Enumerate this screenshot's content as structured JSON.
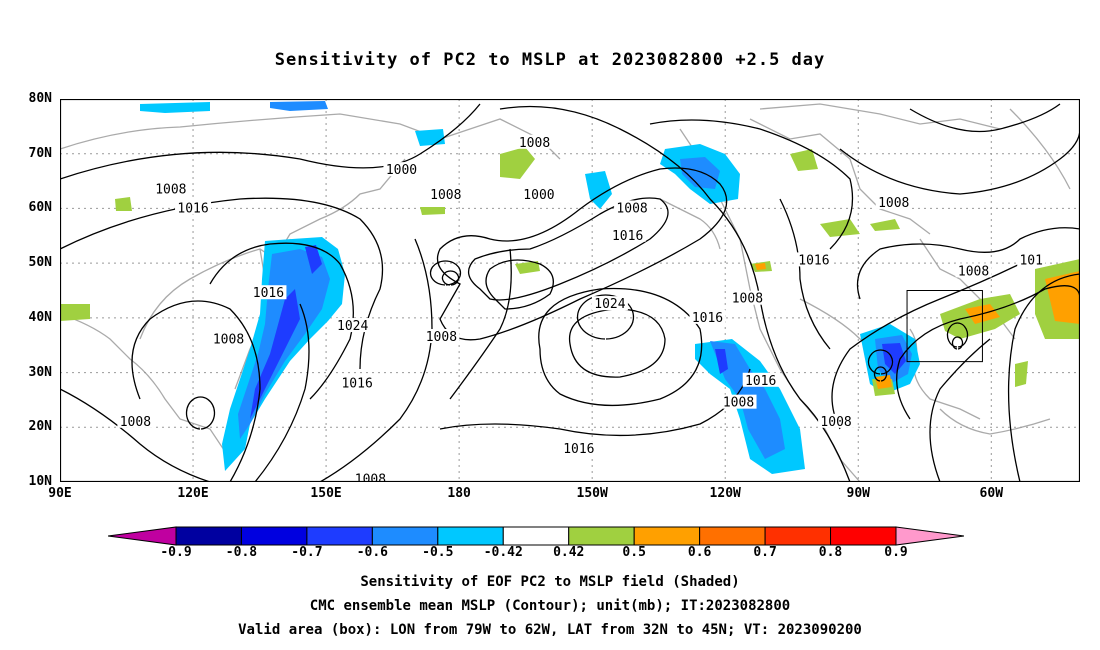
{
  "title": "Sensitivity of PC2 to MSLP at 2023082800 +2.5 day",
  "lat_labels": [
    "80N",
    "70N",
    "60N",
    "50N",
    "40N",
    "30N",
    "20N",
    "10N"
  ],
  "lon_labels": [
    "90E",
    "120E",
    "150E",
    "180",
    "150W",
    "120W",
    "90W",
    "60W"
  ],
  "contour_labels": [
    {
      "text": "1000",
      "lon": 167,
      "lat": 67
    },
    {
      "text": "1008",
      "lon": 115,
      "lat": 63.5
    },
    {
      "text": "1016",
      "lon": 120,
      "lat": 60
    },
    {
      "text": "1016",
      "lon": 137,
      "lat": 44.5
    },
    {
      "text": "1024",
      "lon": 156,
      "lat": 38.5
    },
    {
      "text": "1008",
      "lon": 128,
      "lat": 36
    },
    {
      "text": "1016",
      "lon": 157,
      "lat": 28
    },
    {
      "text": "1008",
      "lon": 107,
      "lat": 21
    },
    {
      "text": "1008",
      "lon": 160,
      "lat": 10.5
    },
    {
      "text": "1008",
      "lon": 197,
      "lat": 72
    },
    {
      "text": "1008",
      "lon": 177,
      "lat": 62.5
    },
    {
      "text": "1000",
      "lon": 198,
      "lat": 62.5
    },
    {
      "text": "1008",
      "lon": 219,
      "lat": 60
    },
    {
      "text": "1016",
      "lon": 218,
      "lat": 55
    },
    {
      "text": "1024",
      "lon": 214,
      "lat": 42.5
    },
    {
      "text": "1008",
      "lon": 176,
      "lat": 36.5
    },
    {
      "text": "1016",
      "lon": 236,
      "lat": 40
    },
    {
      "text": "1008",
      "lon": 245,
      "lat": 43.5
    },
    {
      "text": "1016",
      "lon": 248,
      "lat": 28.5
    },
    {
      "text": "1008",
      "lon": 243,
      "lat": 24.5
    },
    {
      "text": "1016",
      "lon": 207,
      "lat": 16
    },
    {
      "text": "1008",
      "lon": 278,
      "lat": 61
    },
    {
      "text": "1016",
      "lon": 260,
      "lat": 50.5
    },
    {
      "text": "1008",
      "lon": 265,
      "lat": 21
    },
    {
      "text": "1008",
      "lon": 296,
      "lat": 48.5
    },
    {
      "text": "101",
      "lon": 309,
      "lat": 50.5
    }
  ],
  "valid_box": {
    "lon_min": -79,
    "lon_max": -62,
    "lat_min": 32,
    "lat_max": 45
  },
  "colorbar": {
    "labels": [
      "-0.9",
      "-0.8",
      "-0.7",
      "-0.6",
      "-0.5",
      "-0.42",
      "0.42",
      "0.5",
      "0.6",
      "0.7",
      "0.8",
      "0.9"
    ],
    "colors": [
      "#c000a0",
      "#0000a0",
      "#0000e0",
      "#1e3cff",
      "#1e8cff",
      "#00c8ff",
      "#ffffff",
      "#a0d040",
      "#ffa000",
      "#ff7000",
      "#ff3000",
      "#ff0000",
      "#ff99cc"
    ]
  },
  "footer": {
    "line1": "Sensitivity of EOF PC2 to MSLP field (Shaded)",
    "line2": "CMC ensemble mean MSLP (Contour); unit(mb); IT:2023082800",
    "line3": "Valid area (box): LON from 79W to 62W, LAT from 32N to 45N; VT: 2023090200"
  }
}
